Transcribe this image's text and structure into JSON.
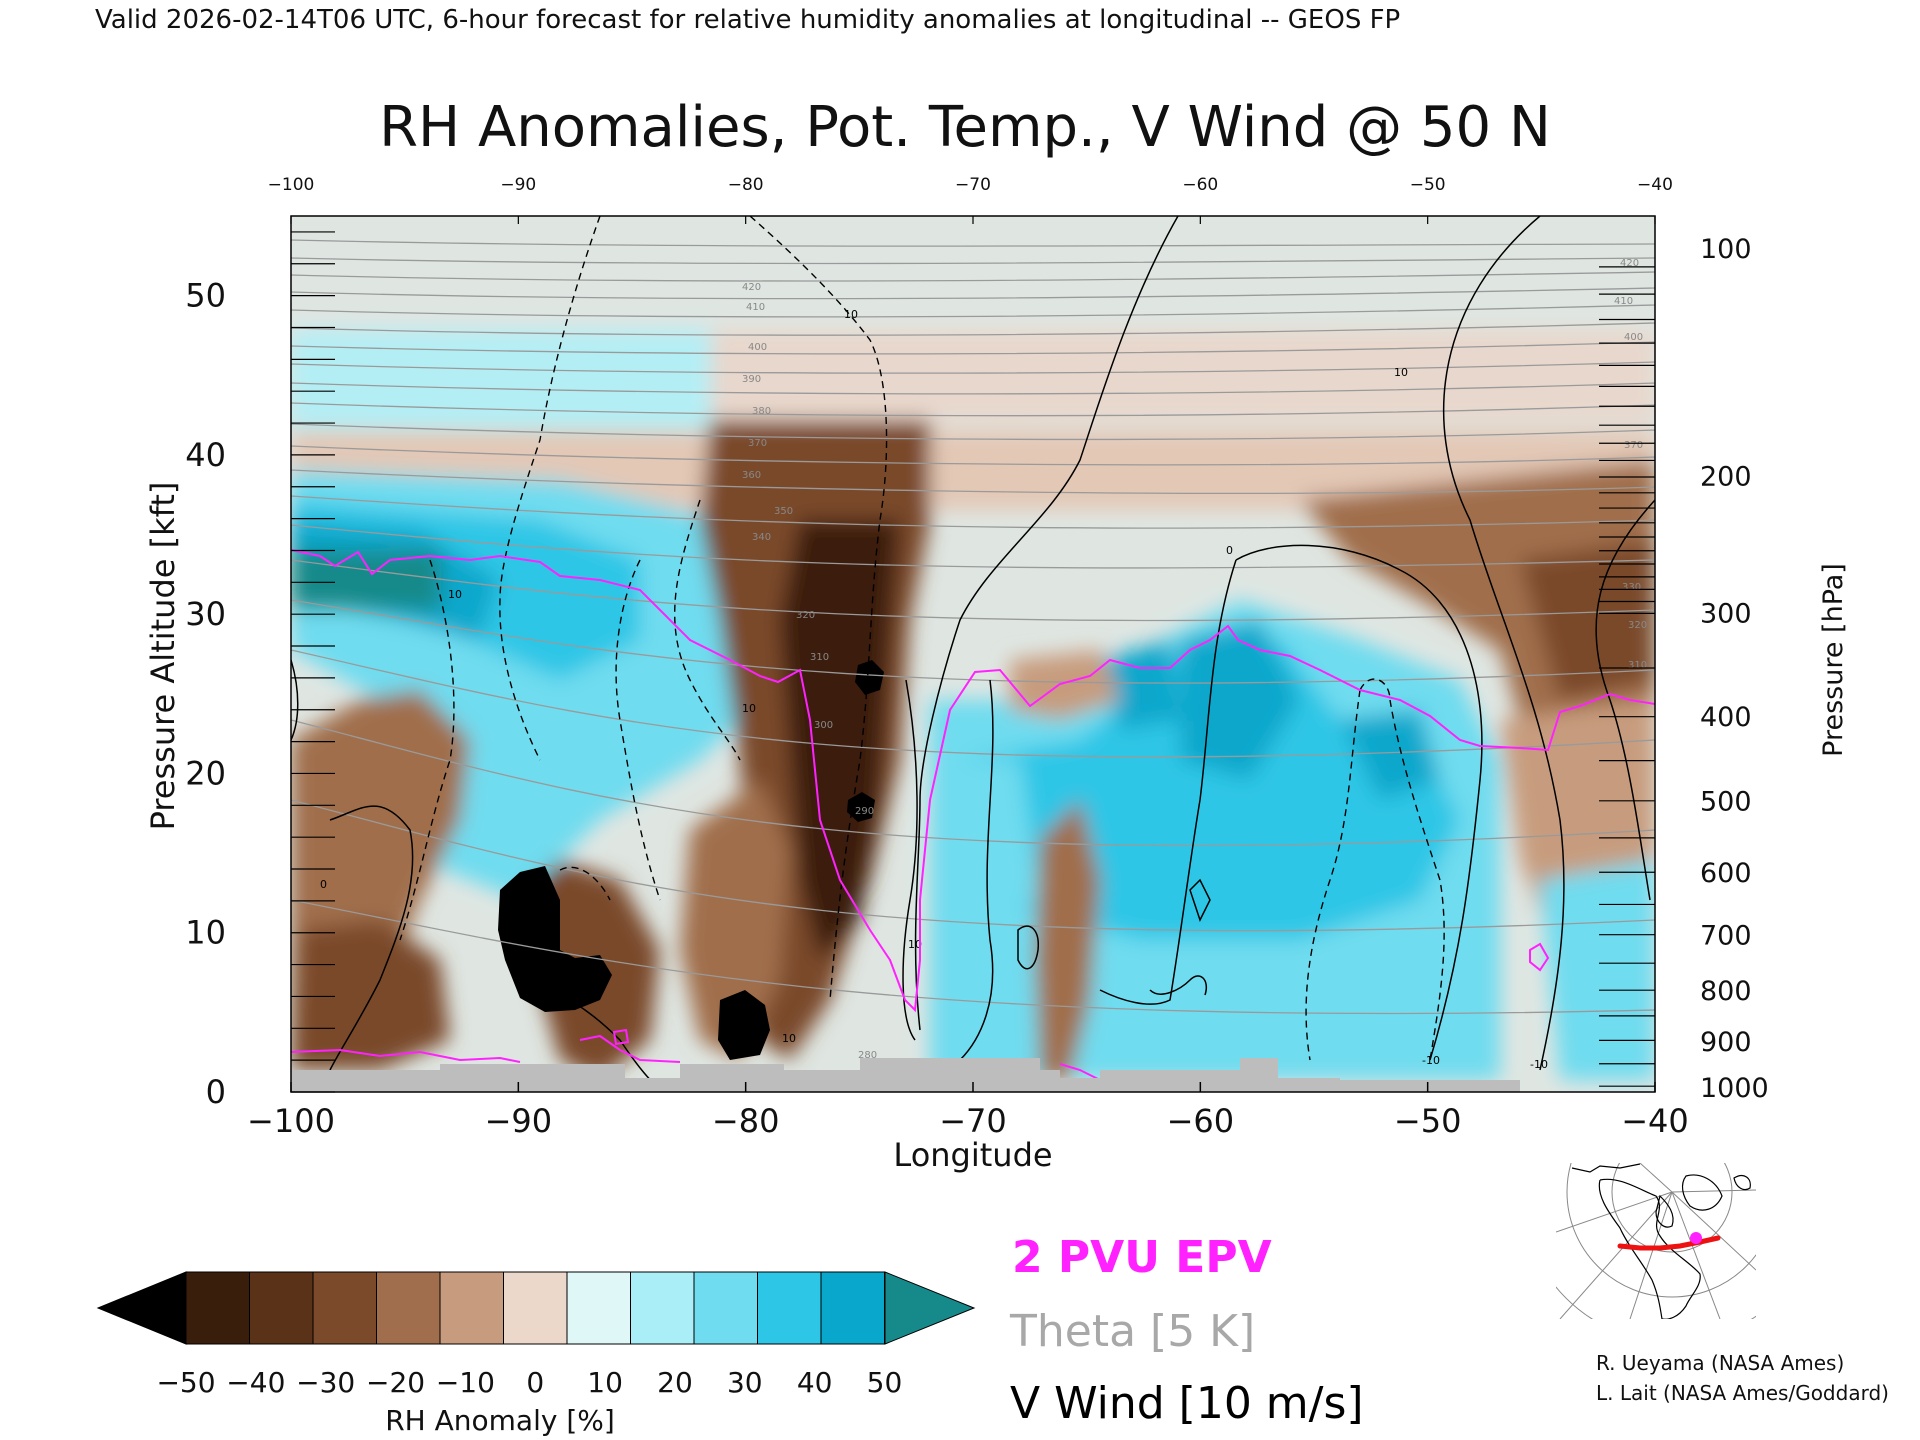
{
  "header": {
    "valid_line": "Valid 2026-02-14T06 UTC, 6-hour forecast for relative humidity anomalies at longitudinal -- GEOS FP"
  },
  "chart_data": {
    "type": "heatmap",
    "title": "RH Anomalies, Pot. Temp., V Wind @ 50 N",
    "xlabel": "Longitude",
    "ylabel": "Pressure Altitude [kft]",
    "y2label": "Pressure [hPa]",
    "xlim": [
      -100,
      -40
    ],
    "ylim": [
      0,
      55
    ],
    "x_ticks": [
      -100,
      -90,
      -80,
      -70,
      -60,
      -50,
      -40
    ],
    "x_tick_labels": [
      "−100",
      "−90",
      "−80",
      "−70",
      "−60",
      "−50",
      "−40"
    ],
    "top_tick_labels": [
      "−100",
      "−90",
      "−80",
      "−70",
      "−60",
      "−50",
      "−40"
    ],
    "y_ticks": [
      0,
      10,
      20,
      30,
      40,
      50
    ],
    "pressure_ticks": [
      {
        "label": "100",
        "kft": 53.0
      },
      {
        "label": "200",
        "kft": 38.7
      },
      {
        "label": "300",
        "kft": 30.1
      },
      {
        "label": "400",
        "kft": 23.6
      },
      {
        "label": "500",
        "kft": 18.3
      },
      {
        "label": "600",
        "kft": 13.8
      },
      {
        "label": "700",
        "kft": 9.9
      },
      {
        "label": "800",
        "kft": 6.4
      },
      {
        "label": "900",
        "kft": 3.2
      },
      {
        "label": "1000",
        "kft": 0.3
      }
    ],
    "colorbar": {
      "label": "RH Anomaly [%]",
      "ticks": [
        "−50",
        "−40",
        "−30",
        "−20",
        "−10",
        "0",
        "10",
        "20",
        "30",
        "40",
        "50"
      ],
      "colors": [
        "#3a1e0c",
        "#5a3218",
        "#7a4a2a",
        "#a06e4c",
        "#c79c7e",
        "#ecd8ca",
        "#dff7f7",
        "#aaeef7",
        "#6fdcef",
        "#2ec6e6",
        "#0aa7cc"
      ],
      "under_color": "#000000",
      "over_color": "#168a8a"
    },
    "theta_labels": [
      "420",
      "410",
      "400",
      "390",
      "380",
      "370",
      "360",
      "350",
      "340",
      "330",
      "320",
      "310",
      "300",
      "290",
      "280"
    ],
    "wind_labels": [
      "10",
      "0",
      "-10"
    ],
    "legend": {
      "epv": "2 PVU EPV",
      "theta": "Theta [5 K]",
      "wind": "V Wind [10 m/s]",
      "epv_color": "#ff22ff",
      "theta_color": "#a8a8a8",
      "wind_color": "#000000"
    }
  },
  "credits": [
    "R. Ueyama (NASA Ames)",
    "L. Lait (NASA Ames/Goddard)"
  ]
}
